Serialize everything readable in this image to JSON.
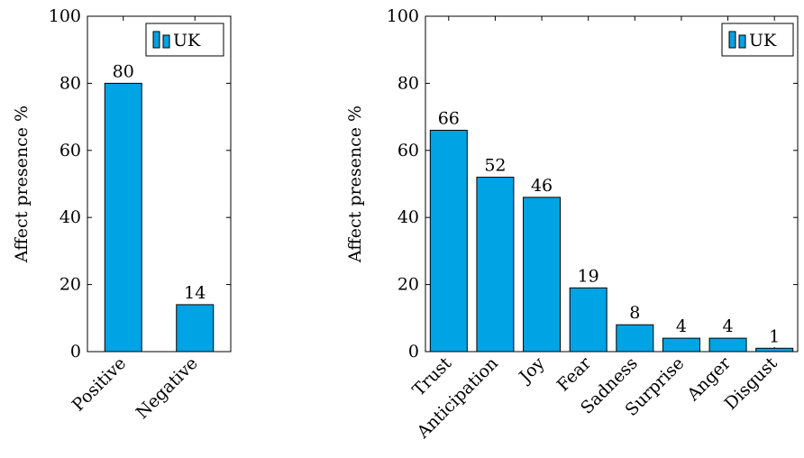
{
  "colors": {
    "bar_fill": "#00A3E3",
    "bar_stroke": "#000000"
  },
  "chart_data": [
    {
      "type": "bar",
      "categories": [
        "Positive",
        "Negative"
      ],
      "series": [
        {
          "name": "UK",
          "values": [
            80,
            14
          ]
        }
      ],
      "ylabel": "Affect presence %",
      "ylim": [
        0,
        100
      ],
      "yticks": [
        0,
        20,
        40,
        60,
        80,
        100
      ],
      "legend_position": "top-right",
      "grid": false
    },
    {
      "type": "bar",
      "categories": [
        "Trust",
        "Anticipation",
        "Joy",
        "Fear",
        "Sadness",
        "Surprise",
        "Anger",
        "Disgust"
      ],
      "series": [
        {
          "name": "UK",
          "values": [
            66,
            52,
            46,
            19,
            8,
            4,
            4,
            1
          ]
        }
      ],
      "ylabel": "Affect presence %",
      "ylim": [
        0,
        100
      ],
      "yticks": [
        0,
        20,
        40,
        60,
        80,
        100
      ],
      "legend_position": "top-right",
      "grid": false
    }
  ]
}
